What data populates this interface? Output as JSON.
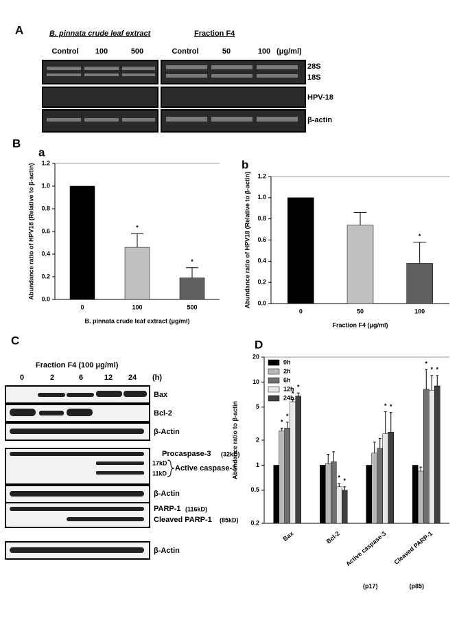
{
  "panels": {
    "a_label": "A",
    "b_label": "B",
    "c_label": "C",
    "d_label": "D"
  },
  "blot_a": {
    "group_left": "B. pinnata crude leaf extract",
    "group_right": "Fraction F4",
    "lanes": [
      "Control",
      "100",
      "500",
      "Control",
      "50",
      "100"
    ],
    "unit": "(μg/ml)",
    "rows": [
      "28S",
      "18S",
      "HPV-18",
      "β-actin"
    ]
  },
  "blot_c": {
    "treatment": "Fraction F4 (100 μg/ml)",
    "lanes": [
      "0",
      "2",
      "6",
      "12",
      "24"
    ],
    "unit": "(h)",
    "rows": [
      "Bax",
      "Bcl-2",
      "β-Actin",
      "Procaspase-3",
      "(32kD)",
      "17kD",
      "11kD",
      "Active caspase-3",
      "β-Actin",
      "PARP-1",
      "(116kD)",
      "Cleaved PARP-1",
      "(85kD)",
      "β-Actin"
    ]
  },
  "chart_data": [
    {
      "type": "bar",
      "panel": "a",
      "y_label": "Abundance ratio of HPV18 (Relative to β-actin)",
      "x_label": "B. pinnata crude leaf extract (μg/ml)",
      "categories": [
        "0",
        "100",
        "500"
      ],
      "values": [
        1.0,
        0.46,
        0.19
      ],
      "errors": [
        0,
        0.12,
        0.09
      ],
      "significance": [
        null,
        "*",
        "*"
      ],
      "colors": [
        "#000000",
        "#c0c0c0",
        "#606060"
      ],
      "ylim": [
        0,
        1.2
      ],
      "yticks": [
        {
          "value": 0,
          "label": "0.0"
        },
        0.2,
        0.4,
        0.6,
        0.8,
        {
          "value": 1,
          "label": "1.0"
        },
        1.2
      ]
    },
    {
      "type": "bar",
      "panel": "b",
      "y_label": "Abundance ratio of HPV18 (Relative to β-actin)",
      "x_label": "Fraction F4 (μg/ml)",
      "categories": [
        "0",
        "50",
        "100"
      ],
      "values": [
        1.0,
        0.74,
        0.38
      ],
      "errors": [
        0,
        0.12,
        0.2
      ],
      "significance": [
        null,
        null,
        "*"
      ],
      "colors": [
        "#000000",
        "#c0c0c0",
        "#606060"
      ],
      "ylim": [
        0,
        1.2
      ],
      "yticks": [
        {
          "value": 0,
          "label": "0.0"
        },
        0.2,
        0.4,
        0.6,
        0.8,
        {
          "value": 1,
          "label": "1.0"
        },
        1.2
      ]
    },
    {
      "type": "bar",
      "log_scale": true,
      "legend": "upper-left",
      "y_label": "Abundance ratio to β-actin",
      "categories": [
        "Bax",
        "Bcl-2",
        "Active caspase-3",
        "Cleaved PARP-1"
      ],
      "category_notes": [
        null,
        null,
        "(p17)",
        "(p85)"
      ],
      "series": [
        {
          "name": "0h",
          "color": "#000000",
          "values": [
            1,
            1,
            1,
            1
          ],
          "errors": [
            0,
            0,
            0,
            0
          ],
          "significance": [
            null,
            null,
            null,
            null
          ]
        },
        {
          "name": "2h",
          "color": "#b8b8b8",
          "values": [
            2.6,
            1.05,
            1.4,
            0.85
          ],
          "errors": [
            0.2,
            0.3,
            0.5,
            0.1
          ],
          "significance": [
            "*",
            null,
            null,
            null
          ]
        },
        {
          "name": "6h",
          "color": "#707070",
          "values": [
            2.8,
            1.1,
            1.6,
            8.2
          ],
          "errors": [
            0.5,
            0.35,
            0.5,
            6
          ],
          "significance": [
            "*",
            null,
            null,
            "*"
          ]
        },
        {
          "name": "12h",
          "color": "#e8e8e8",
          "values": [
            5.8,
            0.55,
            2.4,
            8.0
          ],
          "errors": [
            0.4,
            0.05,
            2.0,
            4
          ],
          "significance": [
            "*",
            "*",
            "*",
            "*"
          ]
        },
        {
          "name": "24h",
          "color": "#404040",
          "values": [
            6.8,
            0.5,
            2.5,
            9.0
          ],
          "errors": [
            0.6,
            0.05,
            1.8,
            3
          ],
          "significance": [
            "*",
            "*",
            "*",
            "*"
          ]
        }
      ],
      "ylim": [
        0.2,
        20
      ],
      "yticks": [
        0.2,
        0.5,
        1,
        2,
        5,
        10,
        20
      ]
    }
  ]
}
